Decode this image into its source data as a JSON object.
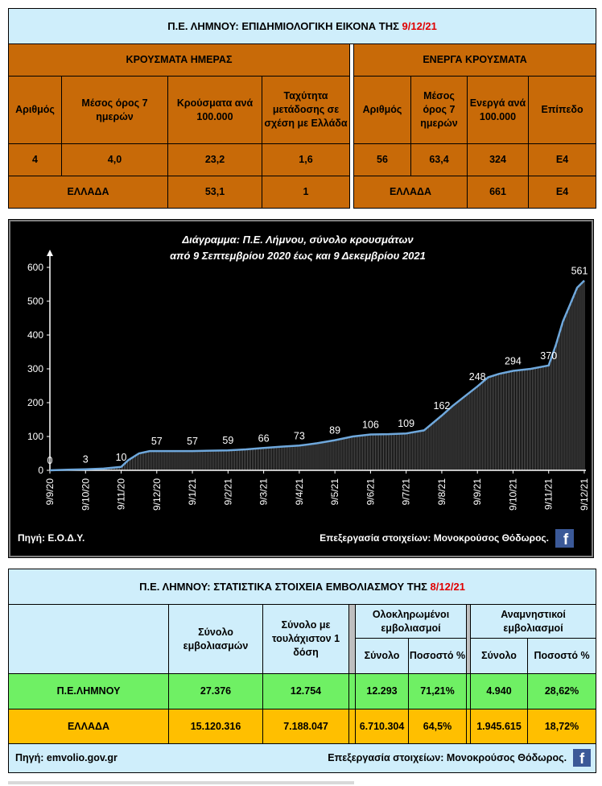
{
  "top_table": {
    "title_prefix": "Π.Ε. ΛΗΜΝΟΥ: ΕΠΙΔΗΜΙΟΛΟΓΙΚΗ ΕΙΚΟΝΑ ΤΗΣ",
    "title_date": "9/12/21",
    "daily_header": "ΚΡΟΥΣΜΑΤΑ ΗΜΕΡΑΣ",
    "active_header": "ΕΝΕΡΓΑ ΚΡΟΥΣΜΑΤΑ",
    "daily_cols": [
      "Αριθμός",
      "Μέσος όρος 7 ημερών",
      "Κρούσματα ανά 100.000",
      "Ταχύτητα μετάδοσης σε σχέση με Ελλάδα"
    ],
    "active_cols": [
      "Αριθμός",
      "Μέσος όρος 7 ημερών",
      "Ενεργά ανά 100.000",
      "Επίπεδο"
    ],
    "daily_values": [
      "4",
      "4,0",
      "23,2",
      "1,6"
    ],
    "active_values": [
      "56",
      "63,4",
      "324",
      "Ε4"
    ],
    "greece_label": "ΕΛΛΑΔΑ",
    "greece_daily": [
      "53,1",
      "1"
    ],
    "greece_active_label": "ΕΛΛΑΔΑ",
    "greece_active": [
      "661",
      "Ε4"
    ]
  },
  "chart_data": {
    "type": "line",
    "title": "Διάγραμμα:  Π.Ε. Λήμνου, σύνολο κρουσμάτων",
    "subtitle": "από 9 Σεπτεμβρίου 2020  έως και 9 Δεκεμβρίου 2021",
    "ylim": [
      0,
      600
    ],
    "yticks": [
      0,
      100,
      200,
      300,
      400,
      500,
      600
    ],
    "x_ticks": [
      "9/9/20",
      "9/10/20",
      "9/11/20",
      "9/12/20",
      "9/1/21",
      "9/2/21",
      "9/3/21",
      "9/4/21",
      "9/5/21",
      "9/6/21",
      "9/7/21",
      "9/8/21",
      "9/9/21",
      "9/10/21",
      "9/11/21",
      "9/12/21"
    ],
    "series": [
      {
        "x": [
          0,
          0.5,
          1,
          1.5,
          2,
          2.2,
          2.5,
          2.8,
          3,
          3.5,
          4,
          4.5,
          5,
          5.5,
          6,
          6.5,
          7,
          7.5,
          8,
          8.5,
          9,
          9.5,
          10,
          10.5,
          11,
          11.3,
          11.6,
          12,
          12.3,
          12.6,
          13,
          13.5,
          14,
          14.2,
          14.4,
          14.6,
          14.8,
          15
        ],
        "values": [
          0,
          2,
          3,
          5,
          10,
          30,
          50,
          57,
          57,
          57,
          57,
          58,
          59,
          62,
          66,
          70,
          73,
          80,
          89,
          100,
          106,
          107,
          109,
          118,
          162,
          190,
          215,
          248,
          275,
          285,
          294,
          300,
          310,
          370,
          440,
          490,
          540,
          561
        ]
      }
    ],
    "data_labels": [
      {
        "x": 0,
        "label": "0"
      },
      {
        "x": 1,
        "label": "3"
      },
      {
        "x": 2,
        "label": "10"
      },
      {
        "x": 3,
        "label": "57"
      },
      {
        "x": 4,
        "label": "57"
      },
      {
        "x": 5,
        "label": "59"
      },
      {
        "x": 6,
        "label": "66"
      },
      {
        "x": 7,
        "label": "73"
      },
      {
        "x": 8,
        "label": "89"
      },
      {
        "x": 9,
        "label": "106"
      },
      {
        "x": 10,
        "label": "109"
      },
      {
        "x": 11,
        "label": "162"
      },
      {
        "x": 12,
        "label": "248"
      },
      {
        "x": 13,
        "label": "294"
      },
      {
        "x": 14,
        "label": "370"
      },
      {
        "x": 15,
        "label": "561"
      }
    ],
    "source": "Πηγή: Ε.Ο.Δ.Υ.",
    "processing": "Επεξεργασία στοιχείων: Μονοκρούσος Θόδωρος.",
    "colors": {
      "background": "#000000",
      "line": "#6fa8dc",
      "bars": "#555555",
      "text": "#ffffff"
    }
  },
  "vax_table": {
    "title_prefix": "Π.Ε. ΛΗΜΝΟΥ: ΣΤΑΤΙΣΤΙΚΑ ΣΤΟΙΧΕΙΑ ΕΜΒΟΛΙΑΣΜΟΥ ΤΗΣ",
    "title_date": "8/12/21",
    "col_total": "Σύνολο εμβολιασμών",
    "col_one_dose": "Σύνολο με τουλάχιστον 1 δόση",
    "col_full": "Ολοκληρωμένοι εμβολιασμοί",
    "col_booster": "Αναμνηστικοί εμβολιασμοί",
    "sub_total": "Σύνολο",
    "sub_pct": "Ποσοστό %",
    "rows": [
      {
        "name": "Π.Ε.ΛΗΜΝΟΥ",
        "total": "27.376",
        "one_dose": "12.754",
        "full": "12.293",
        "full_pct": "71,21%",
        "booster": "4.940",
        "booster_pct": "28,62%"
      },
      {
        "name": "ΕΛΛΑΔΑ",
        "total": "15.120.316",
        "one_dose": "7.188.047",
        "full": "6.710.304",
        "full_pct": "64,5%",
        "booster": "1.945.615",
        "booster_pct": "18,72%"
      }
    ],
    "source": "Πηγή: emvolio.gov.gr",
    "processing": "Επεξεργασία στοιχείων: Μονοκρούσος Θόδωρος.",
    "fb_icon": "facebook-icon"
  }
}
